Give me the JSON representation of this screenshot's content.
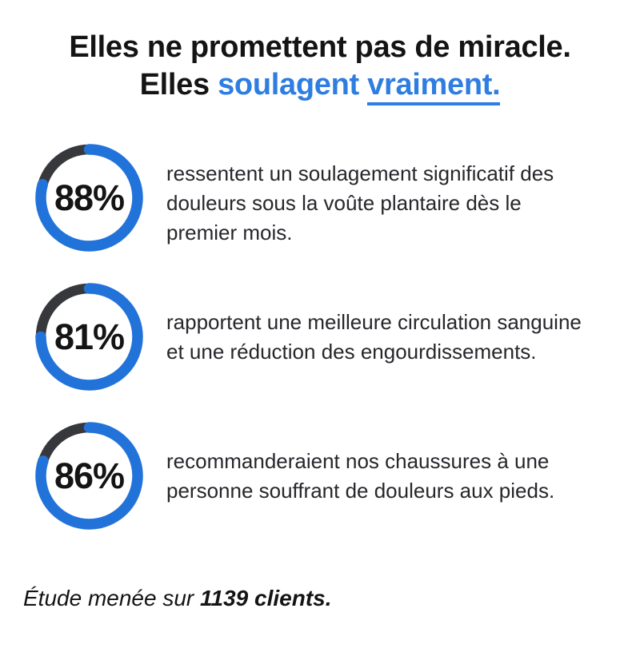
{
  "colors": {
    "background": "#ffffff",
    "heading": "#141414",
    "body_text": "#26272b",
    "accent": "#2e7de0",
    "ring_blue": "#2273d9",
    "ring_dark": "#37383c"
  },
  "title": {
    "line1": "Elles ne promettent pas de miracle.",
    "line2_black": "Elles ",
    "line2_blue": "soulagent ",
    "line2_blue_underlined": "vraiment."
  },
  "stats": [
    {
      "value": 88,
      "value_label": "88%",
      "ring_gap_deg": 74,
      "text": "ressentent un soulagement significatif des\ndouleurs sous la voûte plantaire dès le\npremier mois."
    },
    {
      "value": 81,
      "value_label": "81%",
      "ring_gap_deg": 90,
      "text": "rapportent une meilleure circulation sanguine\net une réduction des engourdissements."
    },
    {
      "value": 86,
      "value_label": "86%",
      "ring_gap_deg": 72,
      "text": "recommanderaient nos chaussures à une\npersonne souffrant de douleurs aux pieds."
    }
  ],
  "footer": {
    "prefix": "Étude menée sur ",
    "bold": "1139 clients."
  },
  "chart_data": {
    "type": "donut",
    "title": "Elles ne promettent pas de miracle. Elles soulagent vraiment.",
    "series": [
      {
        "label": "ressentent un soulagement significatif des douleurs sous la voûte plantaire dès le premier mois.",
        "value_percent": 88,
        "center_label": "88%"
      },
      {
        "label": "rapportent une meilleure circulation sanguine et une réduction des engourdissements.",
        "value_percent": 81,
        "center_label": "81%"
      },
      {
        "label": "recommanderaient nos chaussures à une personne souffrant de douleurs aux pieds.",
        "value_percent": 86,
        "center_label": "86%"
      }
    ],
    "footnote": "Étude menée sur 1139 clients.",
    "colors": {
      "filled": "#2273d9",
      "remainder": "#37383c"
    },
    "legend_position": "right-of-ring"
  }
}
